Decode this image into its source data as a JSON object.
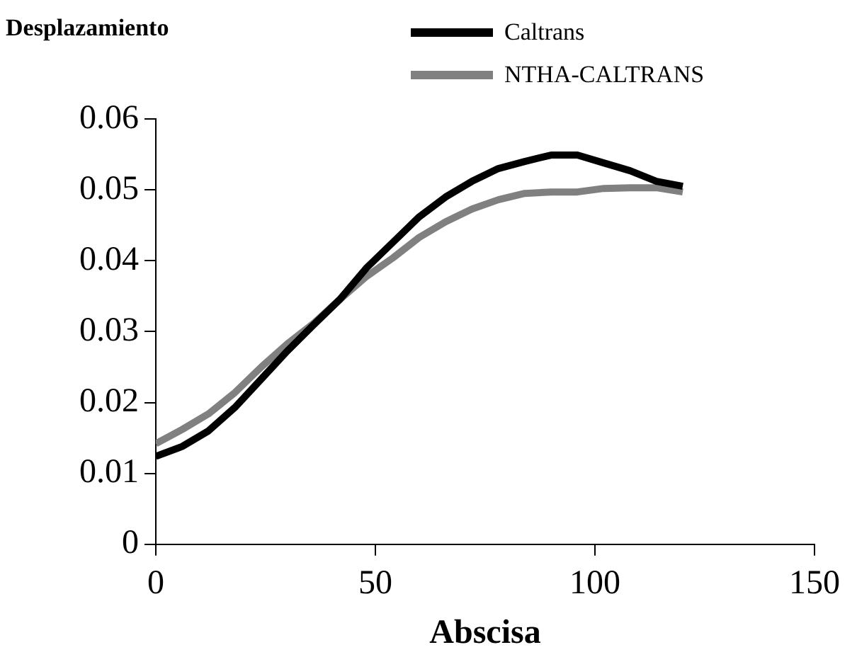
{
  "chart_data": {
    "type": "line",
    "ylabel": "Desplazamiento",
    "xlabel": "Abscisa",
    "xlim": [
      0,
      150
    ],
    "xticks": [
      0,
      50,
      100,
      150
    ],
    "ylim": [
      0,
      0.06
    ],
    "yticks": [
      0,
      0.01,
      0.02,
      0.03,
      0.04,
      0.05,
      0.06
    ],
    "grid": false,
    "legend": "top right",
    "marker": "none",
    "line_style": "solid",
    "x": [
      0,
      6,
      12,
      18,
      24,
      30,
      36,
      42,
      48,
      54,
      60,
      66,
      72,
      78,
      84,
      90,
      96,
      102,
      108,
      114,
      120
    ],
    "series": [
      {
        "name": "Caltrans",
        "color": "#000000",
        "values": [
          0.0124,
          0.0138,
          0.016,
          0.0193,
          0.0233,
          0.0273,
          0.031,
          0.0346,
          0.039,
          0.0426,
          0.0462,
          0.049,
          0.0512,
          0.053,
          0.054,
          0.0549,
          0.0549,
          0.0538,
          0.0527,
          0.0512,
          0.0505
        ]
      },
      {
        "name": "NTHA-CALTRANS",
        "color": "#808080",
        "values": [
          0.0142,
          0.0162,
          0.0184,
          0.0214,
          0.025,
          0.0283,
          0.0312,
          0.0346,
          0.0378,
          0.0404,
          0.0433,
          0.0455,
          0.0473,
          0.0486,
          0.0495,
          0.0497,
          0.0497,
          0.0502,
          0.0503,
          0.0503,
          0.0497
        ]
      }
    ]
  }
}
